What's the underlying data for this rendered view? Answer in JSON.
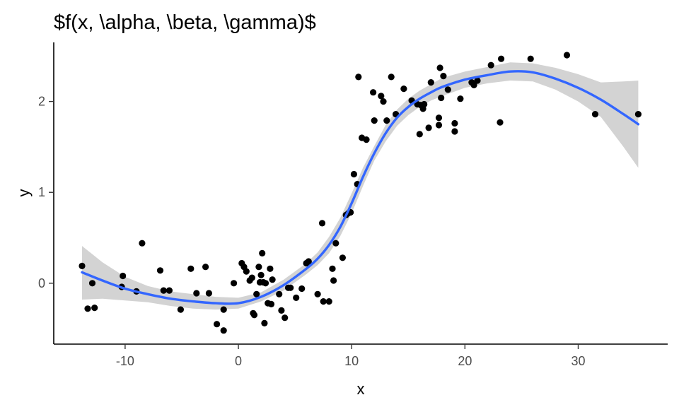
{
  "chart_data": {
    "type": "scatter",
    "title": "$f(x, \\alpha, \\beta, \\gamma)$",
    "xlabel": "x",
    "ylabel": "y",
    "xlim": [
      -16.3,
      37.9
    ],
    "ylim": [
      -0.67,
      2.65
    ],
    "xticks": [
      -10,
      0,
      10,
      20,
      30
    ],
    "yticks": [
      0,
      1,
      2
    ],
    "grid": false,
    "legend": "none",
    "colors": {
      "points": "#000000",
      "smooth_line": "#3366FF",
      "ribbon": "#D3D3D3"
    },
    "points": [
      [
        -13.8,
        0.19
      ],
      [
        -13.3,
        -0.28
      ],
      [
        -12.9,
        0.0
      ],
      [
        -12.7,
        -0.27
      ],
      [
        -10.3,
        -0.04
      ],
      [
        -10.2,
        0.08
      ],
      [
        -9.0,
        -0.09
      ],
      [
        -8.5,
        0.44
      ],
      [
        -6.9,
        0.14
      ],
      [
        -6.6,
        -0.08
      ],
      [
        -6.1,
        -0.08
      ],
      [
        -5.1,
        -0.29
      ],
      [
        -4.2,
        0.16
      ],
      [
        -3.7,
        -0.11
      ],
      [
        -2.9,
        0.18
      ],
      [
        -2.6,
        -0.11
      ],
      [
        -1.9,
        -0.45
      ],
      [
        -1.3,
        -0.52
      ],
      [
        -1.3,
        -0.29
      ],
      [
        -0.4,
        0.0
      ],
      [
        0.3,
        0.22
      ],
      [
        0.5,
        0.18
      ],
      [
        0.7,
        0.13
      ],
      [
        1.0,
        0.03
      ],
      [
        1.2,
        0.06
      ],
      [
        1.3,
        -0.33
      ],
      [
        1.4,
        -0.35
      ],
      [
        1.6,
        -0.12
      ],
      [
        1.8,
        0.18
      ],
      [
        1.9,
        0.01
      ],
      [
        2.0,
        0.09
      ],
      [
        2.1,
        0.33
      ],
      [
        2.2,
        0.01
      ],
      [
        2.3,
        -0.44
      ],
      [
        2.4,
        0.0
      ],
      [
        2.6,
        -0.22
      ],
      [
        2.8,
        0.16
      ],
      [
        2.9,
        -0.23
      ],
      [
        3.0,
        0.04
      ],
      [
        3.6,
        -0.12
      ],
      [
        3.8,
        -0.3
      ],
      [
        4.1,
        -0.38
      ],
      [
        4.4,
        -0.05
      ],
      [
        4.6,
        -0.05
      ],
      [
        5.1,
        -0.16
      ],
      [
        5.6,
        -0.06
      ],
      [
        6.0,
        0.22
      ],
      [
        6.2,
        0.24
      ],
      [
        7.0,
        -0.12
      ],
      [
        7.4,
        0.66
      ],
      [
        7.5,
        -0.2
      ],
      [
        8.0,
        -0.2
      ],
      [
        8.3,
        0.16
      ],
      [
        8.4,
        0.03
      ],
      [
        8.6,
        0.44
      ],
      [
        9.2,
        0.28
      ],
      [
        9.5,
        0.75
      ],
      [
        9.7,
        0.77
      ],
      [
        9.9,
        0.78
      ],
      [
        10.2,
        1.2
      ],
      [
        10.5,
        1.09
      ],
      [
        10.6,
        2.27
      ],
      [
        10.9,
        1.6
      ],
      [
        11.3,
        1.58
      ],
      [
        11.9,
        2.1
      ],
      [
        12.0,
        1.79
      ],
      [
        12.6,
        2.06
      ],
      [
        12.8,
        2.0
      ],
      [
        13.1,
        1.79
      ],
      [
        13.5,
        2.27
      ],
      [
        13.9,
        1.86
      ],
      [
        14.6,
        2.14
      ],
      [
        15.3,
        2.01
      ],
      [
        15.8,
        1.97
      ],
      [
        16.0,
        1.64
      ],
      [
        16.1,
        1.96
      ],
      [
        16.3,
        1.92
      ],
      [
        16.4,
        1.97
      ],
      [
        16.8,
        1.71
      ],
      [
        17.0,
        2.21
      ],
      [
        17.7,
        1.82
      ],
      [
        17.7,
        1.74
      ],
      [
        17.8,
        2.37
      ],
      [
        17.9,
        2.04
      ],
      [
        18.1,
        2.28
      ],
      [
        18.5,
        2.13
      ],
      [
        19.1,
        1.67
      ],
      [
        19.1,
        1.76
      ],
      [
        19.6,
        2.03
      ],
      [
        20.6,
        2.21
      ],
      [
        20.8,
        2.18
      ],
      [
        21.1,
        2.23
      ],
      [
        22.3,
        2.4
      ],
      [
        23.1,
        1.77
      ],
      [
        23.2,
        2.47
      ],
      [
        25.8,
        2.47
      ],
      [
        29.0,
        2.51
      ],
      [
        31.5,
        1.86
      ],
      [
        35.3,
        1.86
      ]
    ],
    "smooth": {
      "x": [
        -13.8,
        -12,
        -10,
        -8,
        -6,
        -4,
        -2,
        0,
        2,
        4,
        6,
        7,
        8,
        9,
        10,
        11,
        12,
        13,
        14,
        15,
        16,
        17,
        18,
        20,
        22,
        24,
        26,
        28,
        30,
        32,
        34,
        35.3
      ],
      "y": [
        0.12,
        0.03,
        -0.06,
        -0.12,
        -0.17,
        -0.2,
        -0.22,
        -0.22,
        -0.15,
        -0.02,
        0.16,
        0.27,
        0.42,
        0.62,
        0.88,
        1.17,
        1.43,
        1.65,
        1.82,
        1.94,
        2.03,
        2.1,
        2.16,
        2.24,
        2.29,
        2.33,
        2.32,
        2.25,
        2.15,
        2.02,
        1.86,
        1.75
      ],
      "lower": [
        -0.18,
        -0.17,
        -0.19,
        -0.21,
        -0.25,
        -0.28,
        -0.29,
        -0.28,
        -0.2,
        -0.08,
        0.1,
        0.2,
        0.33,
        0.52,
        0.77,
        1.07,
        1.35,
        1.56,
        1.73,
        1.85,
        1.94,
        2.01,
        2.06,
        2.15,
        2.2,
        2.23,
        2.22,
        2.13,
        2.0,
        1.83,
        1.5,
        1.27
      ],
      "upper": [
        0.41,
        0.23,
        0.07,
        -0.03,
        -0.09,
        -0.12,
        -0.15,
        -0.16,
        -0.1,
        0.04,
        0.22,
        0.34,
        0.51,
        0.72,
        0.99,
        1.27,
        1.51,
        1.74,
        1.91,
        2.03,
        2.12,
        2.19,
        2.26,
        2.33,
        2.38,
        2.43,
        2.42,
        2.37,
        2.3,
        2.21,
        2.22,
        2.23
      ]
    }
  }
}
